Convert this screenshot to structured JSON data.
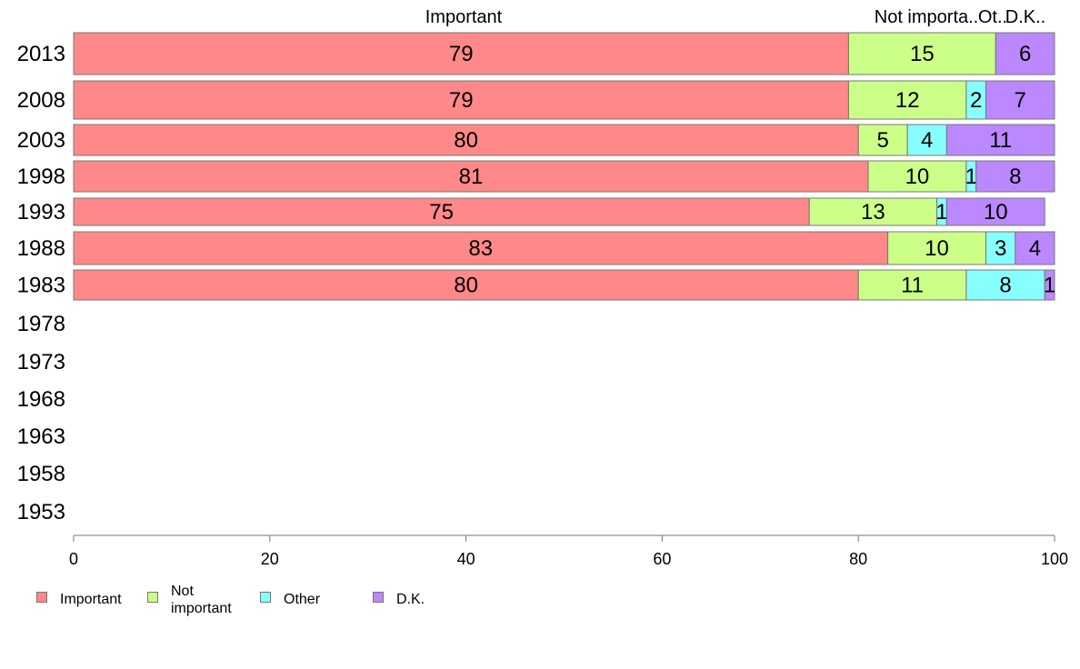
{
  "chart_data": {
    "type": "bar",
    "orientation": "horizontal",
    "stacked": true,
    "categories": [
      "2013",
      "2008",
      "2003",
      "1998",
      "1993",
      "1988",
      "1983",
      "1978",
      "1973",
      "1968",
      "1963",
      "1958",
      "1953"
    ],
    "series": [
      {
        "name": "Important",
        "color": "#ff8888",
        "values": [
          79,
          79,
          80,
          81,
          75,
          83,
          80,
          null,
          null,
          null,
          null,
          null,
          null
        ]
      },
      {
        "name": "Not important",
        "color": "#ccff88",
        "values": [
          15,
          12,
          5,
          10,
          13,
          10,
          11,
          null,
          null,
          null,
          null,
          null,
          null
        ]
      },
      {
        "name": "Other",
        "color": "#88ffff",
        "values": [
          0,
          2,
          4,
          1,
          1,
          3,
          8,
          null,
          null,
          null,
          null,
          null,
          null
        ]
      },
      {
        "name": "D.K.",
        "color": "#bb88ff",
        "values": [
          6,
          7,
          11,
          8,
          10,
          4,
          1,
          null,
          null,
          null,
          null,
          null,
          null
        ]
      }
    ],
    "header_labels": [
      "Important",
      "Not importa..",
      "Ot..",
      "D.K.."
    ],
    "xlim": [
      0,
      100
    ],
    "x_ticks": [
      "0",
      "20",
      "40",
      "60",
      "80",
      "100"
    ],
    "grid": false,
    "legend_position": "bottom"
  },
  "legend": {
    "items": [
      {
        "label_line1": "Important",
        "label_line2": "",
        "color": "#ff8888"
      },
      {
        "label_line1": "Not",
        "label_line2": "important",
        "color": "#ccff88"
      },
      {
        "label_line1": "Other",
        "label_line2": "",
        "color": "#88ffff"
      },
      {
        "label_line1": "D.K.",
        "label_line2": "",
        "color": "#bb88ff"
      }
    ]
  }
}
